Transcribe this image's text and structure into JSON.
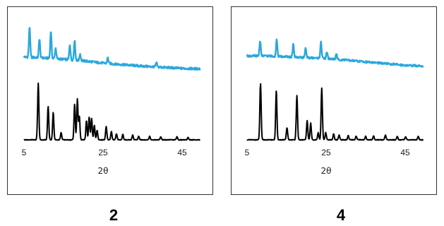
{
  "colors": {
    "upper_trace": "#2aa8dd",
    "lower_trace": "#000000",
    "frame": "#333333"
  },
  "chart_data": [
    {
      "type": "line",
      "caption": "2",
      "xlabel": "2θ",
      "xlim": [
        5,
        50
      ],
      "x_ticks": [
        5,
        25,
        45
      ],
      "y_axis": "hidden (arbitrary intensity, curves offset)",
      "grid": false,
      "series": [
        {
          "role": "upper",
          "color": "#2aa8dd",
          "baseline": [
            [
              5,
              0.9
            ],
            [
              10,
              0.85
            ],
            [
              15,
              0.78
            ],
            [
              20,
              0.7
            ],
            [
              25,
              0.58
            ],
            [
              30,
              0.5
            ],
            [
              35,
              0.42
            ],
            [
              40,
              0.36
            ],
            [
              45,
              0.3
            ],
            [
              49.5,
              0.28
            ]
          ],
          "peaks": [
            [
              6.4,
              1.6
            ],
            [
              8.9,
              1.0
            ],
            [
              11.8,
              1.45
            ],
            [
              13.0,
              0.55
            ],
            [
              16.6,
              0.8
            ],
            [
              17.8,
              1.05
            ],
            [
              19.2,
              0.35
            ],
            [
              26.2,
              0.3
            ],
            [
              38.5,
              0.22
            ]
          ]
        },
        {
          "role": "lower",
          "color": "#000000",
          "baseline": [
            [
              5,
              0
            ],
            [
              50,
              0
            ]
          ],
          "peaks": [
            [
              8.6,
              4.7
            ],
            [
              11.1,
              2.8
            ],
            [
              12.4,
              2.3
            ],
            [
              14.4,
              0.6
            ],
            [
              17.8,
              3.0
            ],
            [
              18.5,
              3.4
            ],
            [
              19.0,
              2.0
            ],
            [
              20.8,
              1.6
            ],
            [
              21.5,
              1.9
            ],
            [
              22.1,
              1.8
            ],
            [
              22.8,
              1.2
            ],
            [
              23.5,
              0.8
            ],
            [
              25.8,
              1.1
            ],
            [
              27.1,
              0.7
            ],
            [
              28.4,
              0.5
            ],
            [
              30.0,
              0.45
            ],
            [
              32.5,
              0.4
            ],
            [
              34.0,
              0.3
            ],
            [
              36.8,
              0.3
            ],
            [
              39.6,
              0.25
            ],
            [
              43.7,
              0.25
            ],
            [
              46.5,
              0.2
            ]
          ]
        }
      ]
    },
    {
      "type": "line",
      "caption": "4",
      "xlabel": "2θ",
      "xlim": [
        5,
        50
      ],
      "x_ticks": [
        5,
        25,
        45
      ],
      "y_axis": "hidden (arbitrary intensity, curves offset)",
      "grid": false,
      "series": [
        {
          "role": "upper",
          "color": "#2aa8dd",
          "baseline": [
            [
              5,
              0.95
            ],
            [
              10,
              0.95
            ],
            [
              15,
              0.9
            ],
            [
              20,
              0.85
            ],
            [
              25,
              0.8
            ],
            [
              30,
              0.7
            ],
            [
              35,
              0.6
            ],
            [
              40,
              0.5
            ],
            [
              45,
              0.4
            ],
            [
              49.5,
              0.35
            ]
          ],
          "peaks": [
            [
              8.3,
              0.9
            ],
            [
              12.5,
              1.0
            ],
            [
              16.7,
              0.75
            ],
            [
              19.8,
              0.55
            ],
            [
              23.7,
              1.0
            ],
            [
              25.2,
              0.4
            ],
            [
              27.6,
              0.3
            ]
          ]
        },
        {
          "role": "lower",
          "color": "#000000",
          "baseline": [
            [
              5,
              0
            ],
            [
              50,
              0
            ]
          ],
          "peaks": [
            [
              8.4,
              4.7
            ],
            [
              12.4,
              4.1
            ],
            [
              15.1,
              1.0
            ],
            [
              17.6,
              3.7
            ],
            [
              20.2,
              1.6
            ],
            [
              21.1,
              1.4
            ],
            [
              23.0,
              0.6
            ],
            [
              23.9,
              4.3
            ],
            [
              24.9,
              0.6
            ],
            [
              26.9,
              0.5
            ],
            [
              28.3,
              0.4
            ],
            [
              30.6,
              0.35
            ],
            [
              32.6,
              0.3
            ],
            [
              35.0,
              0.3
            ],
            [
              37.0,
              0.35
            ],
            [
              40.0,
              0.4
            ],
            [
              43.0,
              0.3
            ],
            [
              45.1,
              0.25
            ],
            [
              48.3,
              0.3
            ]
          ]
        }
      ]
    }
  ]
}
